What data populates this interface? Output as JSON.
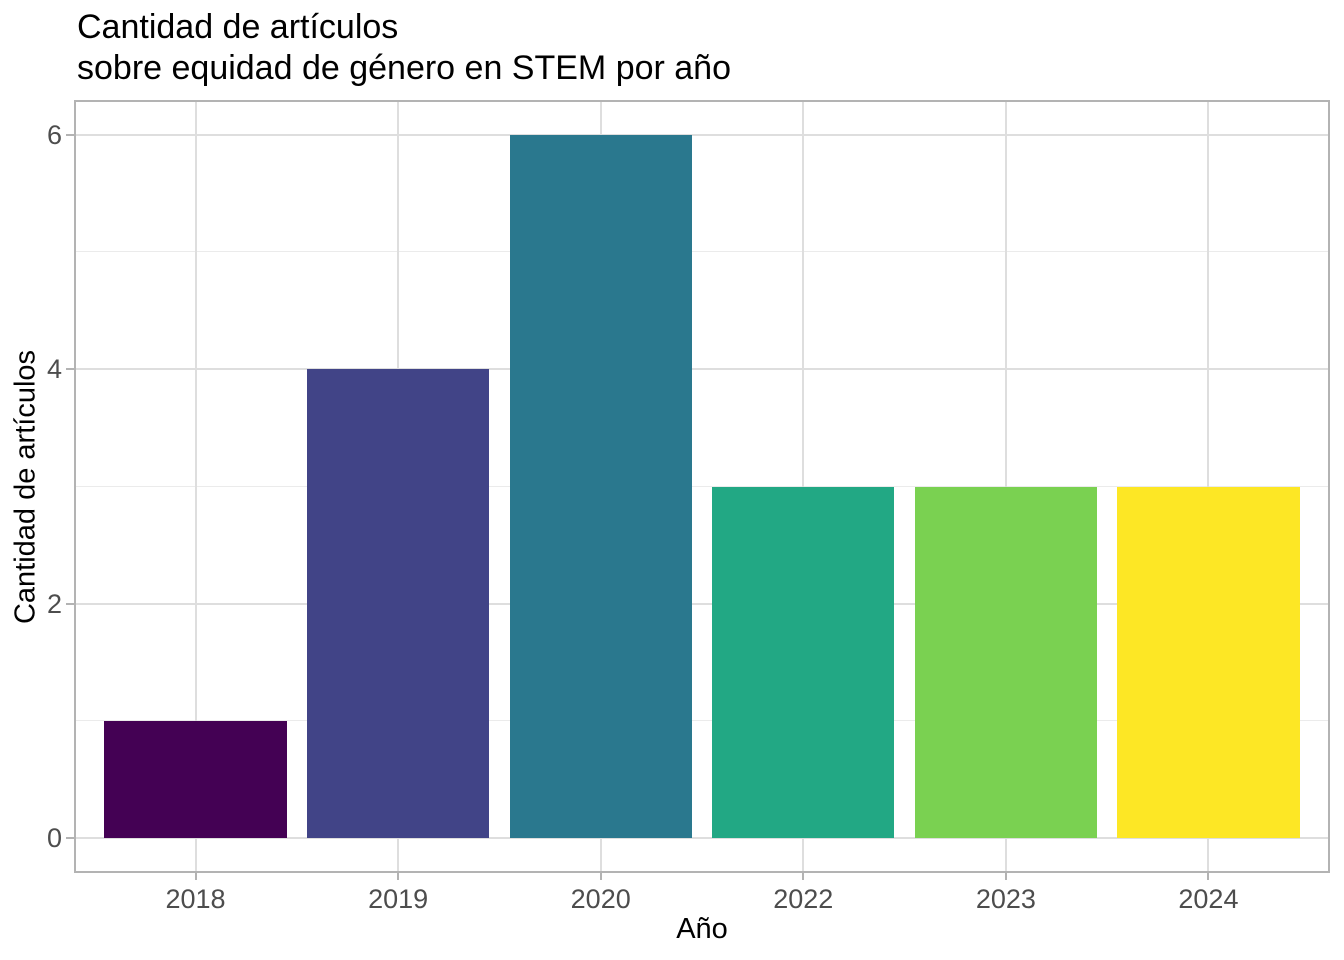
{
  "chart_data": {
    "type": "bar",
    "title": "Cantidad de artículos\nsobre equidad de género en STEM por año",
    "title_lines": [
      "Cantidad de artículos",
      "sobre equidad de género en STEM por año"
    ],
    "xlabel": "Año",
    "ylabel": "Cantidad de artículos",
    "categories": [
      "2018",
      "2019",
      "2020",
      "2022",
      "2023",
      "2024"
    ],
    "values": [
      1,
      4,
      6,
      3,
      3,
      3
    ],
    "bar_colors": [
      "#440154",
      "#414487",
      "#2a788e",
      "#22a884",
      "#7ad151",
      "#fde725"
    ],
    "palette": "viridis",
    "bar_width_fraction": 0.9,
    "y_axis": {
      "tick_labels": [
        "0",
        "2",
        "4",
        "6"
      ],
      "ticks": [
        0,
        2,
        4,
        6
      ],
      "minor_gridlines": [
        1,
        3,
        5
      ],
      "range": [
        0,
        6
      ]
    },
    "x_axis": {
      "gridlines": "major vertical line at each category center"
    },
    "grid": "on",
    "legend": "none"
  },
  "style": {
    "background": "#ffffff",
    "panel_background": "#ffffff",
    "panel_border_color": "#b3b3b3",
    "grid_major_color": "#dedede",
    "grid_minor_color": "#ebebeb",
    "tick_color": "#b3b3b3",
    "tick_label_color": "#4d4d4d",
    "title_color": "#000000",
    "axis_title_color": "#000000"
  }
}
